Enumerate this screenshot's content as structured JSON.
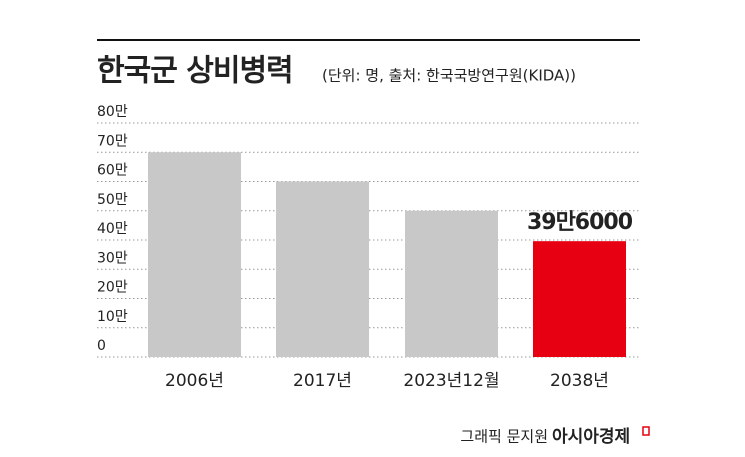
{
  "chart_data": {
    "type": "bar",
    "title": "한국군 상비병력",
    "subtitle": "(단위: 명, 출처: 한국국방연구원(KIDA))",
    "categories": [
      "2006년",
      "2017년",
      "2023년12월",
      "2038년"
    ],
    "values": [
      70,
      60,
      50,
      39.6
    ],
    "value_labels": [
      null,
      null,
      null,
      "39만6000"
    ],
    "colors": [
      "#c8c8c8",
      "#c8c8c8",
      "#c8c8c8",
      "#e60012"
    ],
    "ylim": [
      0,
      80
    ],
    "yticks": [
      0,
      {
        "value": 10,
        "label": "10만"
      },
      {
        "value": 20,
        "label": "20만"
      },
      {
        "value": 30,
        "label": "30만"
      },
      {
        "value": 40,
        "label": "40만"
      },
      {
        "value": 50,
        "label": "50만"
      },
      {
        "value": 60,
        "label": "60만"
      },
      {
        "value": 70,
        "label": "70만"
      },
      {
        "value": 80,
        "label": "80만"
      }
    ],
    "grid": true
  },
  "footer": {
    "credit": "그래픽 문지원",
    "brand": "아시아경제"
  }
}
